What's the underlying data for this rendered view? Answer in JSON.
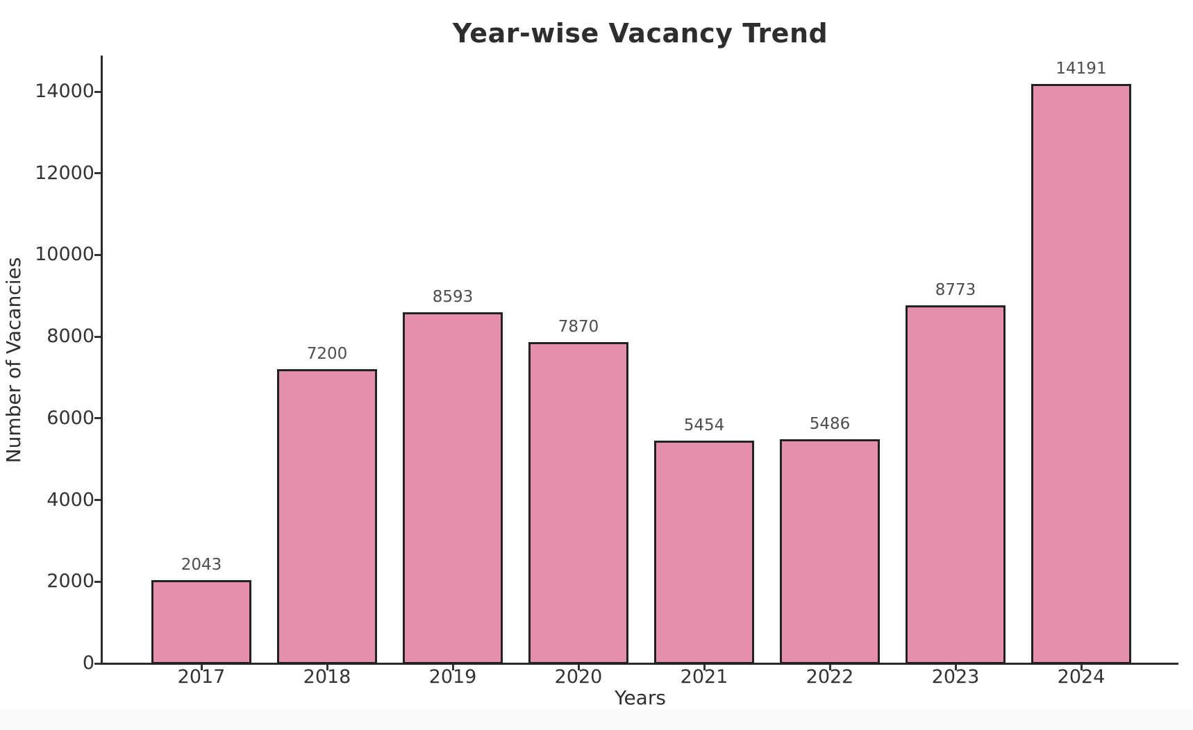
{
  "chart_data": {
    "type": "bar",
    "title": "Year-wise Vacancy Trend",
    "xlabel": "Years",
    "ylabel": "Number of Vacancies",
    "categories": [
      "2017",
      "2018",
      "2019",
      "2020",
      "2021",
      "2022",
      "2023",
      "2024"
    ],
    "values": [
      2043,
      7200,
      8593,
      7870,
      5454,
      5486,
      8773,
      14191
    ],
    "bar_value_labels": [
      "2043",
      "7200",
      "8593",
      "7870",
      "5454",
      "5486",
      "8773",
      "14191"
    ],
    "yticks": [
      0,
      2000,
      4000,
      6000,
      8000,
      10000,
      12000,
      14000
    ],
    "ytick_labels": [
      "0",
      "2000",
      "4000",
      "6000",
      "8000",
      "10000",
      "12000",
      "14000"
    ],
    "ylim": [
      0,
      14880
    ],
    "grid": false,
    "legend_position": "none",
    "colors": {
      "bar_fill": "#e48fab",
      "bar_edge": "#222222",
      "axis": "#2b2b2b",
      "tick_label": "#333333",
      "value_label": "#4d4d4d",
      "title": "#2e2e2e",
      "axis_label": "#2e2e2e",
      "background": "#ffffff",
      "footer_strip": "#f9f9f9"
    }
  }
}
